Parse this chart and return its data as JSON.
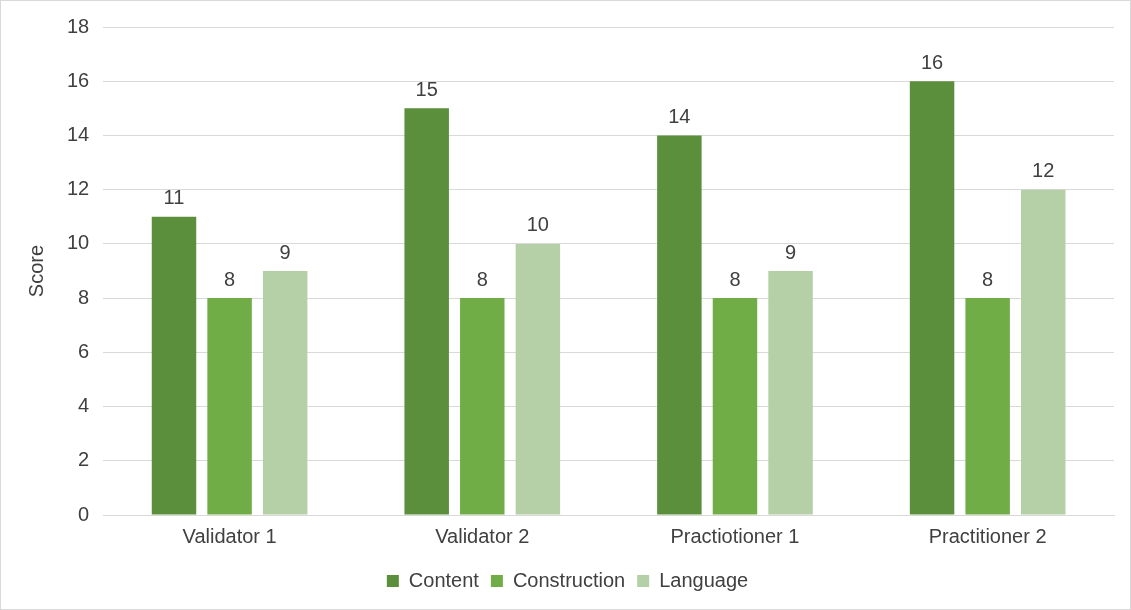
{
  "chart_data": {
    "type": "bar",
    "ylabel": "Score",
    "categories": [
      "Validator 1",
      "Validator 2",
      "Practiotioner 1",
      "Practitioner 2"
    ],
    "series": [
      {
        "name": "Content",
        "color": "#5b8f3b",
        "values": [
          11,
          15,
          14,
          16
        ]
      },
      {
        "name": "Construction",
        "color": "#70ad47",
        "values": [
          8,
          8,
          8,
          8
        ]
      },
      {
        "name": "Language",
        "color": "#b5d0a6",
        "values": [
          9,
          10,
          9,
          12
        ]
      }
    ],
    "ylim": [
      0,
      18
    ],
    "yticks": [
      0,
      2,
      4,
      6,
      8,
      10,
      12,
      14,
      16,
      18
    ],
    "grid": "y",
    "legend": "bottom",
    "data_labels": true
  }
}
